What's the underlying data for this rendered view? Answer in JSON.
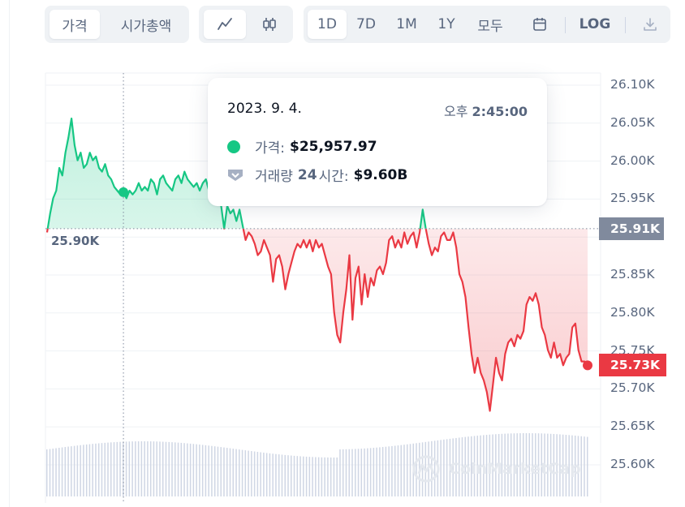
{
  "toolbar": {
    "view_tabs": [
      {
        "label": "가격",
        "active": true
      },
      {
        "label": "시가총액",
        "active": false
      }
    ],
    "chart_type": {
      "active": "line"
    },
    "ranges": [
      "1D",
      "7D",
      "1M",
      "1Y",
      "모두"
    ],
    "active_range": "1D",
    "log_label": "LOG"
  },
  "tooltip": {
    "date": "2023. 9. 4.",
    "time_prefix": "오후",
    "time_value": "2:45:00",
    "price_label": "가격:",
    "price_value": "$25,957.97",
    "volume_label_a": "거래량",
    "volume_label_num": "24",
    "volume_label_b": "시간:",
    "volume_value": "$9.60B"
  },
  "reference_label": "25.90K",
  "current_price_tag": "25.73K",
  "reference_tag": "25.91K",
  "watermark": "CoinMarketCap",
  "colors": {
    "up": "#16c784",
    "down": "#ea3943",
    "ref_tag_bg": "#808a9d",
    "axis_text": "#58667e",
    "volume": "#cfd6e4"
  },
  "chart_data": {
    "type": "line",
    "title": "",
    "xlabel": "",
    "ylabel": "",
    "ylim": [
      25.58,
      26.12
    ],
    "y_unit": "K USD",
    "y_ticks": [
      "26.10K",
      "26.05K",
      "26.00K",
      "25.95K",
      "25.90K",
      "25.85K",
      "25.80K",
      "25.75K",
      "25.70K",
      "25.65K",
      "25.60K"
    ],
    "reference_value": 25.91,
    "current_value": 25.73,
    "hover_value": 25.958,
    "grid": true,
    "series": [
      {
        "values": [
          25.905,
          25.93,
          25.95,
          25.96,
          25.99,
          25.98,
          26.01,
          26.03,
          26.055,
          26.02,
          26.0,
          26.01,
          25.99,
          25.995,
          26.01,
          26.0,
          26.005,
          25.99,
          25.985,
          25.995,
          25.98,
          25.975,
          25.965,
          25.96,
          25.955,
          25.958,
          25.95,
          25.96,
          25.955,
          25.96,
          25.97,
          25.96,
          25.965,
          25.96,
          25.975,
          25.97,
          25.955,
          25.975,
          25.98,
          25.97,
          25.965,
          25.96,
          25.975,
          25.98,
          25.97,
          25.985,
          25.975,
          25.97,
          25.965,
          25.97,
          25.96,
          25.97,
          25.975,
          25.96,
          25.965,
          25.97,
          25.955,
          25.94,
          25.91,
          25.94,
          25.93,
          25.935,
          25.92,
          25.935,
          25.915,
          25.895,
          25.905,
          25.9,
          25.89,
          25.875,
          25.88,
          25.895,
          25.885,
          25.875,
          25.84,
          25.87,
          25.875,
          25.86,
          25.83,
          25.85,
          25.865,
          25.88,
          25.89,
          25.885,
          25.895,
          25.885,
          25.895,
          25.88,
          25.895,
          25.885,
          25.89,
          25.875,
          25.86,
          25.85,
          25.8,
          25.77,
          25.76,
          25.8,
          25.83,
          25.875,
          25.79,
          25.845,
          25.86,
          25.81,
          25.85,
          25.82,
          25.845,
          25.835,
          25.855,
          25.86,
          25.85,
          25.865,
          25.895,
          25.9,
          25.885,
          25.895,
          25.885,
          25.905,
          25.89,
          25.9,
          25.905,
          25.885,
          25.905,
          25.935,
          25.91,
          25.89,
          25.875,
          25.885,
          25.88,
          25.9,
          25.905,
          25.895,
          25.895,
          25.905,
          25.885,
          25.85,
          25.84,
          25.82,
          25.78,
          25.745,
          25.72,
          25.74,
          25.72,
          25.71,
          25.695,
          25.67,
          25.705,
          25.74,
          25.72,
          25.71,
          25.745,
          25.76,
          25.765,
          25.755,
          25.77,
          25.765,
          25.775,
          25.81,
          25.82,
          25.815,
          25.825,
          25.81,
          25.78,
          25.77,
          25.75,
          25.74,
          25.76,
          25.74,
          25.745,
          25.73,
          25.74,
          25.745,
          25.78,
          25.785,
          25.75,
          25.735,
          25.735,
          25.73
        ]
      }
    ]
  }
}
